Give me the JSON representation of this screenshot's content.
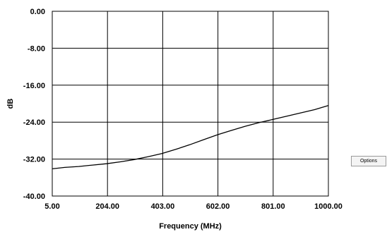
{
  "options_label": "Options",
  "chart_data": {
    "type": "line",
    "xlabel": "Frequency (MHz)",
    "ylabel": "dB",
    "xlim": [
      5.0,
      1000.0
    ],
    "ylim": [
      -40.0,
      0.0
    ],
    "x_ticks": [
      "5.00",
      "204.00",
      "403.00",
      "602.00",
      "801.00",
      "1000.00"
    ],
    "y_ticks": [
      "0.00",
      "-8.00",
      "-16.00",
      "-24.00",
      "-32.00",
      "-40.00"
    ],
    "grid": true,
    "series": [
      {
        "x": [
          5,
          50,
          100,
          150,
          200,
          250,
          300,
          350,
          400,
          450,
          500,
          550,
          602,
          650,
          700,
          750,
          801,
          850,
          900,
          950,
          1000
        ],
        "y": [
          -34.1,
          -33.8,
          -33.6,
          -33.3,
          -33.0,
          -32.6,
          -32.1,
          -31.5,
          -30.8,
          -29.9,
          -28.9,
          -27.8,
          -26.7,
          -25.8,
          -24.9,
          -24.1,
          -23.4,
          -22.7,
          -22.0,
          -21.3,
          -20.4
        ]
      }
    ]
  }
}
